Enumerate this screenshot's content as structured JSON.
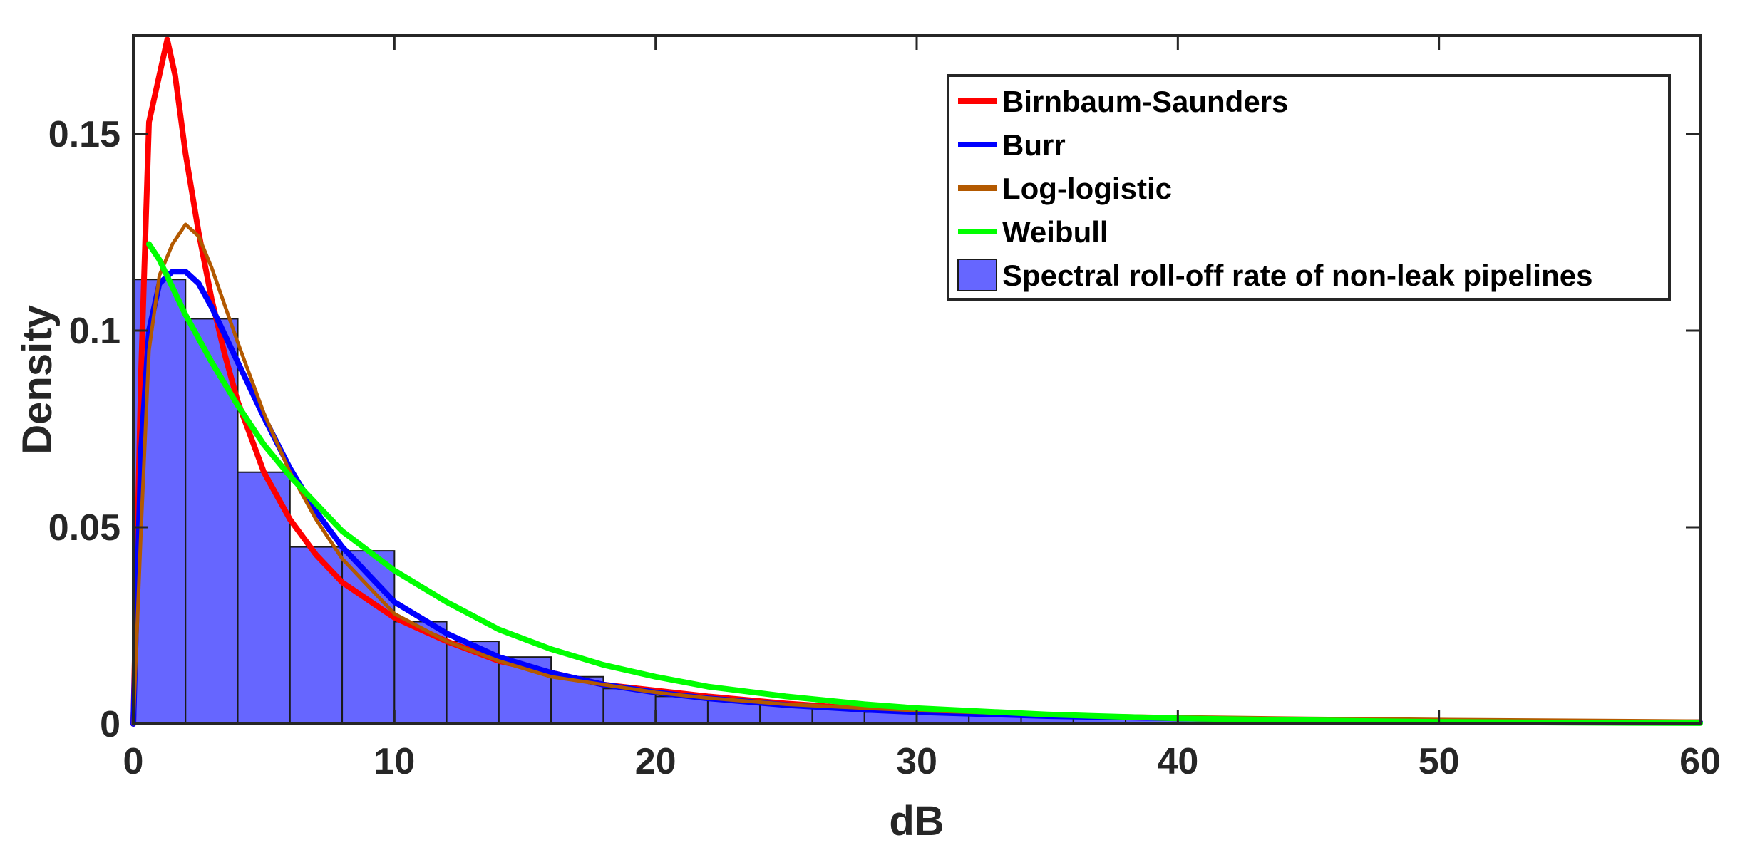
{
  "chart_data": {
    "type": "bar",
    "xlabel": "dB",
    "ylabel": "Density",
    "xlim": [
      0,
      60
    ],
    "ylim": [
      0,
      0.175
    ],
    "xticks": [
      0,
      10,
      20,
      30,
      40,
      50,
      60
    ],
    "xtick_labels": [
      "0",
      "10",
      "20",
      "30",
      "40",
      "50",
      "60"
    ],
    "yticks": [
      0,
      0.05,
      0.1,
      0.15
    ],
    "ytick_labels": [
      "0",
      "0.05",
      "0.1",
      "0.15"
    ],
    "grid": false,
    "legend_position": "top-right",
    "histogram": {
      "name": "Spectral roll-off rate of non-leak pipelines",
      "color": "#6666ff",
      "bin_edges": [
        0,
        2,
        4,
        6,
        8,
        10,
        12,
        14,
        16,
        18,
        20,
        22,
        24,
        26,
        28,
        30,
        32,
        34,
        36,
        38,
        40,
        42,
        44,
        46,
        48,
        50,
        52,
        54,
        56,
        58,
        60
      ],
      "values": [
        0.113,
        0.103,
        0.064,
        0.045,
        0.044,
        0.026,
        0.021,
        0.017,
        0.012,
        0.009,
        0.007,
        0.006,
        0.005,
        0.004,
        0.003,
        0.0028,
        0.0024,
        0.002,
        0.0015,
        0.0012,
        0.001,
        0.0009,
        0.0008,
        0.0007,
        0.0006,
        0.0005,
        0.0004,
        0.0003,
        0.0003,
        0.0002
      ]
    },
    "series": [
      {
        "name": "Birnbaum-Saunders",
        "color": "#ff0000",
        "x": [
          0,
          0.3,
          0.6,
          1.0,
          1.3,
          1.6,
          2.0,
          2.5,
          3.0,
          3.5,
          4.0,
          5.0,
          6.0,
          7.0,
          8.0,
          10,
          12,
          14,
          16,
          18,
          20,
          22,
          25,
          28,
          30,
          35,
          40,
          45,
          50,
          55,
          60
        ],
        "y": [
          0,
          0.09,
          0.153,
          0.165,
          0.174,
          0.165,
          0.145,
          0.125,
          0.108,
          0.094,
          0.082,
          0.064,
          0.052,
          0.043,
          0.036,
          0.027,
          0.021,
          0.016,
          0.013,
          0.01,
          0.0085,
          0.007,
          0.0052,
          0.0038,
          0.0032,
          0.0021,
          0.0014,
          0.001,
          0.0007,
          0.0005,
          0.0004
        ]
      },
      {
        "name": "Burr",
        "color": "#0000ff",
        "x": [
          0,
          0.3,
          0.6,
          1.0,
          1.5,
          2.0,
          2.5,
          3.0,
          4.0,
          5.0,
          6.0,
          7.0,
          8.0,
          10,
          12,
          14,
          16,
          18,
          20,
          22,
          25,
          28,
          30,
          35,
          40,
          45,
          50,
          55,
          60
        ],
        "y": [
          0,
          0.07,
          0.1,
          0.112,
          0.115,
          0.115,
          0.112,
          0.106,
          0.092,
          0.078,
          0.065,
          0.054,
          0.045,
          0.031,
          0.023,
          0.017,
          0.013,
          0.01,
          0.008,
          0.0065,
          0.0048,
          0.0036,
          0.003,
          0.002,
          0.0014,
          0.001,
          0.0007,
          0.0005,
          0.0004
        ]
      },
      {
        "name": "Log-logistic",
        "color": "#b35900",
        "x": [
          0,
          0.3,
          0.6,
          1.0,
          1.5,
          2.0,
          2.5,
          3.0,
          4.0,
          5.0,
          6.0,
          7.0,
          8.0,
          10,
          12,
          14,
          16,
          18,
          20,
          22,
          25,
          28,
          30,
          35,
          40,
          45,
          50,
          55,
          60
        ],
        "y": [
          0,
          0.05,
          0.095,
          0.114,
          0.122,
          0.127,
          0.124,
          0.116,
          0.097,
          0.079,
          0.064,
          0.052,
          0.042,
          0.028,
          0.021,
          0.016,
          0.012,
          0.01,
          0.008,
          0.0066,
          0.005,
          0.004,
          0.0034,
          0.0024,
          0.0018,
          0.0014,
          0.0011,
          0.0009,
          0.0007
        ]
      },
      {
        "name": "Weibull",
        "color": "#00ff00",
        "x": [
          0.6,
          1.0,
          2.0,
          3.0,
          4.0,
          5.0,
          6.0,
          7.0,
          8.0,
          10,
          12,
          14,
          16,
          18,
          20,
          22,
          25,
          28,
          30,
          35,
          40,
          45,
          50,
          55,
          60
        ],
        "y": [
          0.122,
          0.118,
          0.104,
          0.092,
          0.081,
          0.071,
          0.063,
          0.056,
          0.049,
          0.039,
          0.031,
          0.024,
          0.019,
          0.015,
          0.012,
          0.0095,
          0.007,
          0.005,
          0.004,
          0.0024,
          0.0014,
          0.0009,
          0.0005,
          0.0003,
          0.0002
        ]
      }
    ]
  }
}
